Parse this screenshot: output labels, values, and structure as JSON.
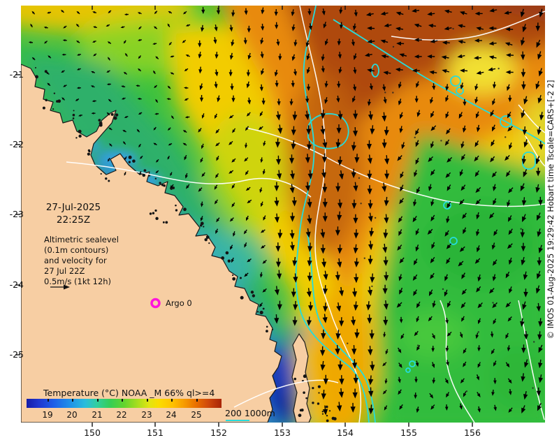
{
  "map": {
    "date_line1": "27-Jul-2025",
    "date_line2": "22:25Z",
    "info_lines": [
      "Altimetric sealevel",
      "(0.1m contours)",
      "and velocity for",
      "27 Jul 22Z",
      "0.5m/s (1kt 12h)"
    ],
    "argo_label": "Argo 0",
    "credit_vertical": "© IMOS 01-Aug-2025 19:29:42 Hobart time Tscale=CARS+[-2 2]"
  },
  "colorbar": {
    "title": "Temperature (°C) NOAA _M 66% ql>=4",
    "tick_labels": [
      "19",
      "20",
      "21",
      "22",
      "23",
      "24",
      "25"
    ],
    "gradient_colors": [
      "#151CA8",
      "#2036CE",
      "#1D5FE8",
      "#1F8FE8",
      "#2ABCDC",
      "#31CFA0",
      "#36CE55",
      "#63D42E",
      "#A8DE1E",
      "#E2E512",
      "#FBDC00",
      "#FFC000",
      "#F69A00",
      "#E96F00",
      "#D04A0C",
      "#A82408"
    ]
  },
  "bathy_legend": {
    "text": "200  1000m",
    "line_color": "#25DCDC"
  },
  "axes": {
    "x_ticks": [
      "150",
      "151",
      "152",
      "153",
      "154",
      "155",
      "156"
    ],
    "y_ticks": [
      "-21",
      "-22",
      "-23",
      "-24",
      "-25"
    ]
  },
  "colors": {
    "land": "#F7CEA3",
    "ocean_base": "#3CC23C",
    "sealevel_contour": "#FFFFFF",
    "bathymetry_contour": "#25DCDC",
    "velocity_arrow": "#000000",
    "argo_marker": "#FF14DC"
  }
}
